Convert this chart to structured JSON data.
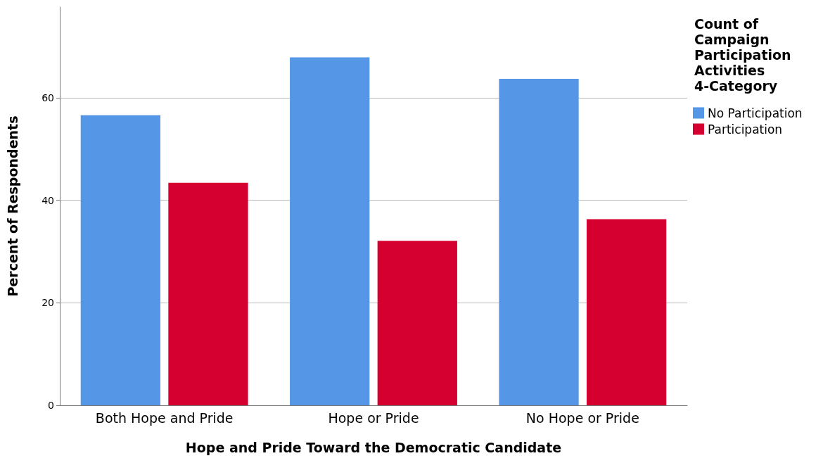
{
  "chart_data": {
    "type": "bar",
    "xlabel": "Hope and Pride Toward the Democratic Candidate",
    "ylabel": "Percent of Respondents",
    "legend_title": "Count of Campaign Participation Activities 4-Category",
    "categories": [
      "Both Hope and Pride",
      "Hope or Pride",
      "No Hope or Pride"
    ],
    "series": [
      {
        "name": "No Participation",
        "color": "#5597e6",
        "values": [
          56.6,
          67.9,
          63.7
        ]
      },
      {
        "name": "Participation",
        "color": "#d5002f",
        "values": [
          43.4,
          32.1,
          36.3
        ]
      }
    ],
    "ylim": [
      0,
      77.7
    ],
    "yticks": [
      0,
      20,
      40,
      60
    ],
    "grid": "y",
    "legend": "right"
  }
}
